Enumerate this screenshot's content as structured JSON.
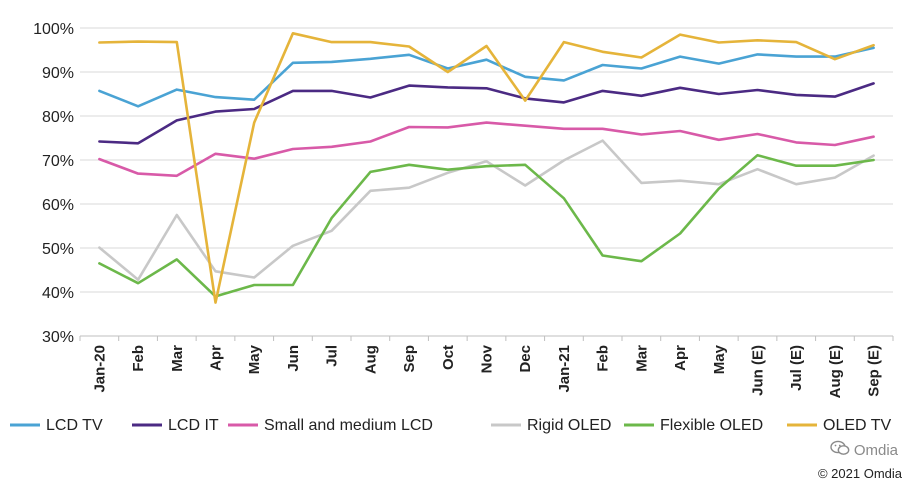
{
  "chart_data": {
    "type": "line",
    "categories": [
      "Jan-20",
      "Feb",
      "Mar",
      "Apr",
      "May",
      "Jun",
      "Jul",
      "Aug",
      "Sep",
      "Oct",
      "Nov",
      "Dec",
      "Jan-21",
      "Feb",
      "Mar",
      "Apr",
      "May",
      "Jun (E)",
      "Jul (E)",
      "Aug (E)",
      "Sep (E)"
    ],
    "ylim": [
      30,
      100
    ],
    "yticks": [
      "30%",
      "40%",
      "50%",
      "60%",
      "70%",
      "80%",
      "90%",
      "100%"
    ],
    "grid": true,
    "legend_position": "bottom",
    "series": [
      {
        "name": "LCD TV",
        "color": "#4aa3d4",
        "values": [
          85.7,
          82.2,
          86.0,
          84.3,
          83.7,
          92.1,
          92.3,
          93.0,
          93.9,
          90.8,
          92.8,
          88.9,
          88.1,
          91.6,
          90.8,
          93.5,
          91.9,
          94.0,
          93.5,
          93.5,
          95.5
        ]
      },
      {
        "name": "LCD IT",
        "color": "#4b2a83",
        "values": [
          74.2,
          73.8,
          79.0,
          81.0,
          81.6,
          85.7,
          85.7,
          84.2,
          86.9,
          86.5,
          86.3,
          84.0,
          83.1,
          85.7,
          84.6,
          86.4,
          85.0,
          85.9,
          84.8,
          84.4,
          87.4
        ]
      },
      {
        "name": "Small and medium LCD",
        "color": "#d85aa8",
        "values": [
          70.2,
          66.9,
          66.4,
          71.4,
          70.3,
          72.5,
          73.0,
          74.2,
          77.5,
          77.4,
          78.5,
          77.8,
          77.1,
          77.1,
          75.8,
          76.6,
          74.6,
          75.9,
          74.0,
          73.4,
          75.3
        ]
      },
      {
        "name": "Rigid OLED",
        "color": "#c8c8c8",
        "values": [
          50.1,
          42.8,
          57.5,
          44.7,
          43.3,
          50.5,
          53.9,
          63.0,
          63.7,
          67.1,
          69.7,
          64.2,
          69.9,
          74.4,
          64.8,
          65.3,
          64.5,
          67.9,
          64.5,
          66.0,
          71.0
        ]
      },
      {
        "name": "Flexible OLED",
        "color": "#6cb84a",
        "values": [
          46.5,
          42.0,
          47.4,
          39.0,
          41.6,
          41.6,
          56.8,
          67.3,
          68.9,
          67.8,
          68.6,
          68.9,
          61.3,
          48.3,
          47.0,
          53.3,
          63.5,
          71.1,
          68.7,
          68.7,
          70.0
        ]
      },
      {
        "name": "OLED TV",
        "color": "#e5b43a",
        "values": [
          96.7,
          96.9,
          96.8,
          37.6,
          78.5,
          98.8,
          96.8,
          96.8,
          95.8,
          90.0,
          95.9,
          83.5,
          96.8,
          94.6,
          93.3,
          98.5,
          96.7,
          97.2,
          96.8,
          92.9,
          96.1
        ]
      }
    ]
  },
  "watermark": {
    "icon": "wechat-icon",
    "text": "Omdia"
  },
  "copyright": "© 2021 Omdia"
}
